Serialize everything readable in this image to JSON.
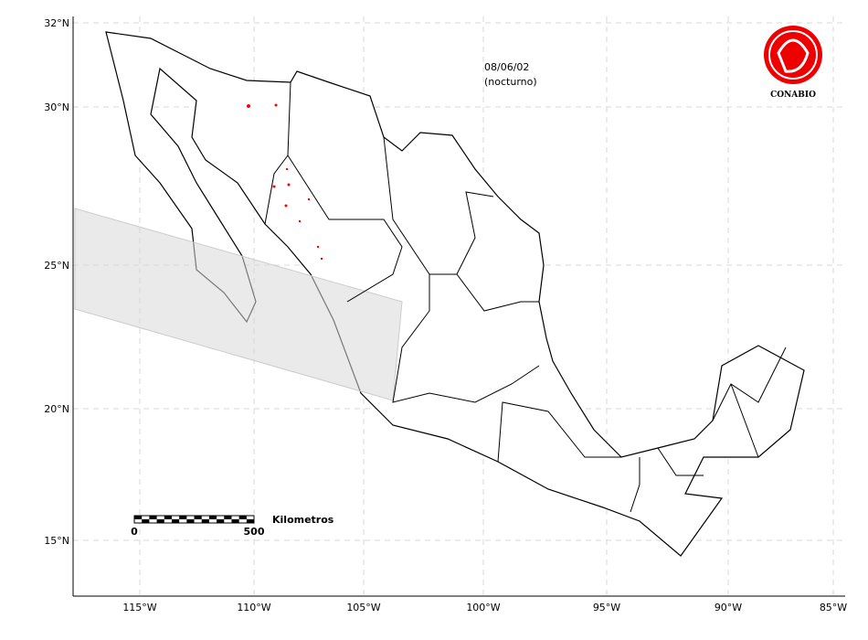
{
  "map": {
    "x_labels": [
      "115°W",
      "110°W",
      "105°W",
      "100°W",
      "95°W",
      "90°W",
      "85°W"
    ],
    "y_labels": [
      "32°N",
      "30°N",
      "25°N",
      "20°N",
      "15°N"
    ],
    "date": "08/06/02",
    "period": "(nocturno)",
    "logo": "CONABIO",
    "scale_bar": {
      "unit": "Kilometros",
      "start": 0,
      "end": 500
    }
  }
}
